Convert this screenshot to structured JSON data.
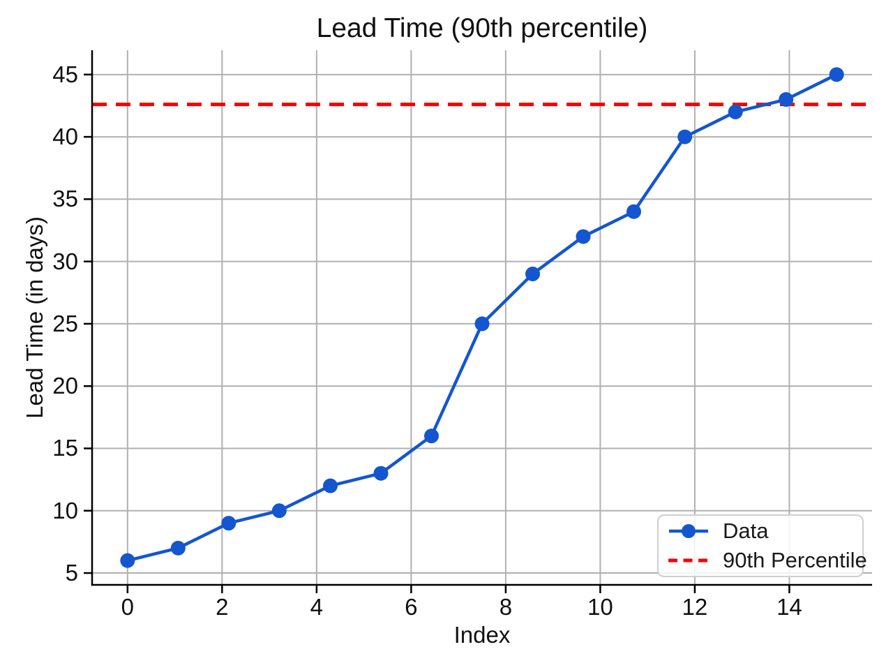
{
  "chart_data": {
    "type": "line",
    "title": "Lead Time (90th percentile)",
    "xlabel": "Index",
    "ylabel": "Lead Time (in days)",
    "x": [
      0,
      1.07,
      2.14,
      3.21,
      4.29,
      5.36,
      6.43,
      7.5,
      8.57,
      9.64,
      10.71,
      11.79,
      12.86,
      13.93,
      15
    ],
    "y": [
      6,
      7,
      9,
      10,
      12,
      13,
      16,
      25,
      29,
      32,
      34,
      40,
      42,
      43,
      45
    ],
    "series": [
      {
        "name": "Data",
        "type": "line-markers",
        "color": "#1456d0"
      },
      {
        "name": "90th Percentile",
        "type": "horizontal-dashed-line",
        "color": "#f80000",
        "value": 42.6
      }
    ],
    "percentile_value": 42.6,
    "xticks": [
      0,
      2,
      4,
      6,
      8,
      10,
      12,
      14
    ],
    "yticks": [
      5,
      10,
      15,
      20,
      25,
      30,
      35,
      40,
      45
    ],
    "xlim": [
      -0.75,
      15.75
    ],
    "ylim": [
      4.05,
      46.95
    ],
    "grid": true,
    "grid_color": "#b0b0b0",
    "spine_color": "#000000",
    "legend_position": "lower right"
  }
}
